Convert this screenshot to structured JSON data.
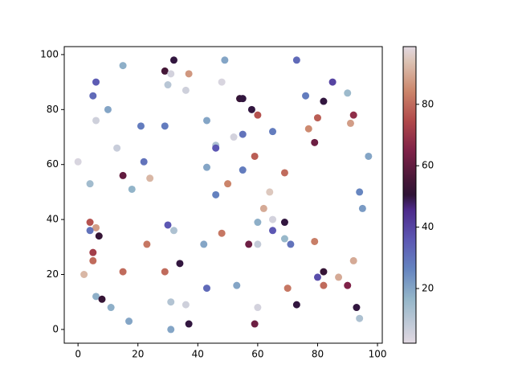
{
  "chart_data": {
    "type": "scatter",
    "colormap": "twilight",
    "x": [
      32,
      49,
      73,
      15,
      29,
      31,
      37,
      6,
      48,
      85,
      30,
      36,
      90,
      5,
      76,
      54,
      55,
      82,
      10,
      58,
      92,
      60,
      80,
      6,
      43,
      91,
      21,
      29,
      77,
      65,
      55,
      52,
      79,
      46,
      46,
      13,
      59,
      97,
      0,
      22,
      43,
      55,
      69,
      15,
      24,
      50,
      4,
      18,
      64,
      94,
      46,
      95,
      62,
      65,
      4,
      60,
      69,
      30,
      6,
      4,
      32,
      65,
      7,
      48,
      69,
      79,
      23,
      42,
      57,
      60,
      71,
      5,
      5,
      92,
      34,
      15,
      29,
      82,
      2,
      80,
      87,
      43,
      53,
      70,
      82,
      90,
      6,
      8,
      31,
      36,
      73,
      11,
      60,
      93,
      94,
      17,
      37,
      59,
      31
    ],
    "y": [
      98,
      98,
      98,
      96,
      94,
      93,
      93,
      90,
      90,
      90,
      89,
      87,
      86,
      85,
      85,
      84,
      84,
      83,
      80,
      80,
      78,
      78,
      77,
      76,
      76,
      75,
      74,
      74,
      73,
      72,
      71,
      70,
      68,
      67,
      66,
      66,
      63,
      63,
      61,
      61,
      59,
      58,
      57,
      56,
      55,
      53,
      53,
      51,
      50,
      50,
      49,
      44,
      44,
      40,
      39,
      39,
      39,
      38,
      37,
      36,
      36,
      36,
      34,
      35,
      33,
      32,
      31,
      31,
      31,
      31,
      31,
      28,
      25,
      25,
      24,
      21,
      21,
      21,
      20,
      19,
      19,
      15,
      16,
      15,
      16,
      16,
      12,
      11,
      10,
      9,
      9,
      8,
      8,
      8,
      4,
      3,
      2,
      2,
      0
    ],
    "c": [
      50,
      20,
      32,
      18,
      55,
      5,
      87,
      35,
      4,
      40,
      10,
      6,
      15,
      32,
      28,
      52,
      50,
      50,
      20,
      50,
      68,
      76,
      78,
      6,
      20,
      88,
      28,
      28,
      85,
      28,
      30,
      5,
      62,
      12,
      36,
      7,
      78,
      20,
      4,
      30,
      20,
      28,
      80,
      60,
      92,
      84,
      14,
      17,
      95,
      26,
      27,
      22,
      90,
      5,
      76,
      18,
      50,
      36,
      88,
      30,
      12,
      36,
      52,
      82,
      16,
      83,
      82,
      20,
      62,
      8,
      30,
      72,
      80,
      90,
      50,
      80,
      80,
      52,
      92,
      38,
      90,
      32,
      20,
      82,
      80,
      65,
      18,
      52,
      11,
      6,
      50,
      18,
      5,
      50,
      12,
      20,
      50,
      62,
      20
    ],
    "xlim": [
      -4.6,
      101.6
    ],
    "ylim": [
      -5,
      102.9
    ],
    "xticks": [
      0,
      20,
      40,
      60,
      80,
      100
    ],
    "yticks": [
      0,
      20,
      40,
      60,
      80,
      100
    ],
    "clim": [
      2.2,
      98.8
    ],
    "cticks": [
      20,
      40,
      60,
      80
    ]
  }
}
